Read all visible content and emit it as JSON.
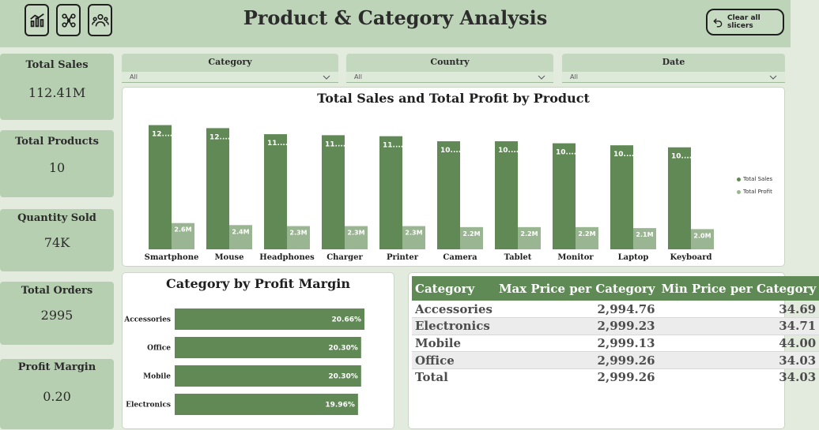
{
  "header": {
    "title": "Product & Category Analysis",
    "clear_label": "Clear all slicers",
    "nav_icons": [
      "dashboard-chart-icon",
      "product-tree-icon",
      "customers-icon"
    ]
  },
  "kpis": [
    {
      "label": "Total Sales",
      "value": "112.41M"
    },
    {
      "label": "Total Products",
      "value": "10"
    },
    {
      "label": "Quantity Sold",
      "value": "74K"
    },
    {
      "label": "Total Orders",
      "value": "2995"
    },
    {
      "label": "Profit Margin",
      "value": "0.20"
    }
  ],
  "slicers": [
    {
      "title": "Category",
      "value": "All"
    },
    {
      "title": "Country",
      "value": "All"
    },
    {
      "title": "Date",
      "value": "All"
    }
  ],
  "colors": {
    "sales": "#608956",
    "profit": "#9ab591",
    "header_bg": "#bdd4b8",
    "table_header": "#5f8a55"
  },
  "chart_data": [
    {
      "type": "bar",
      "title": "Total Sales and Total Profit by Product",
      "categories": [
        "Smartphone",
        "Mouse",
        "Headphones",
        "Charger",
        "Printer",
        "Camera",
        "Tablet",
        "Monitor",
        "Laptop",
        "Keyboard"
      ],
      "series": [
        {
          "name": "Total Sales",
          "values": [
            12.3,
            12.0,
            11.4,
            11.3,
            11.2,
            10.7,
            10.7,
            10.5,
            10.3,
            10.1
          ],
          "labels": [
            "12....",
            "12....",
            "11....",
            "11....",
            "11....",
            "10....",
            "10....",
            "10....",
            "10....",
            "10...."
          ]
        },
        {
          "name": "Total Profit",
          "values": [
            2.6,
            2.4,
            2.3,
            2.3,
            2.3,
            2.2,
            2.2,
            2.2,
            2.1,
            2.0
          ],
          "labels": [
            "2.6M",
            "2.4M",
            "2.3M",
            "2.3M",
            "2.3M",
            "2.2M",
            "2.2M",
            "2.2M",
            "2.1M",
            "2.0M"
          ]
        }
      ],
      "ylim": [
        0,
        12.5
      ],
      "legend": "right"
    },
    {
      "type": "bar",
      "orientation": "horizontal",
      "title": "Category by Profit Margin",
      "categories": [
        "Accessories",
        "Office",
        "Mobile",
        "Electronics"
      ],
      "values": [
        20.66,
        20.3,
        20.3,
        19.96
      ],
      "labels": [
        "20.66%",
        "20.30%",
        "20.30%",
        "19.96%"
      ],
      "xlim": [
        0,
        21
      ]
    }
  ],
  "price_table": {
    "headers": [
      "Category",
      "Max Price per Category",
      "Min Price per Category"
    ],
    "rows": [
      [
        "Accessories",
        "2,994.76",
        "34.69"
      ],
      [
        "Electronics",
        "2,999.23",
        "34.71"
      ],
      [
        "Mobile",
        "2,999.13",
        "44.00"
      ],
      [
        "Office",
        "2,999.26",
        "34.03"
      ],
      [
        "Total",
        "2,999.26",
        "34.03"
      ]
    ]
  }
}
